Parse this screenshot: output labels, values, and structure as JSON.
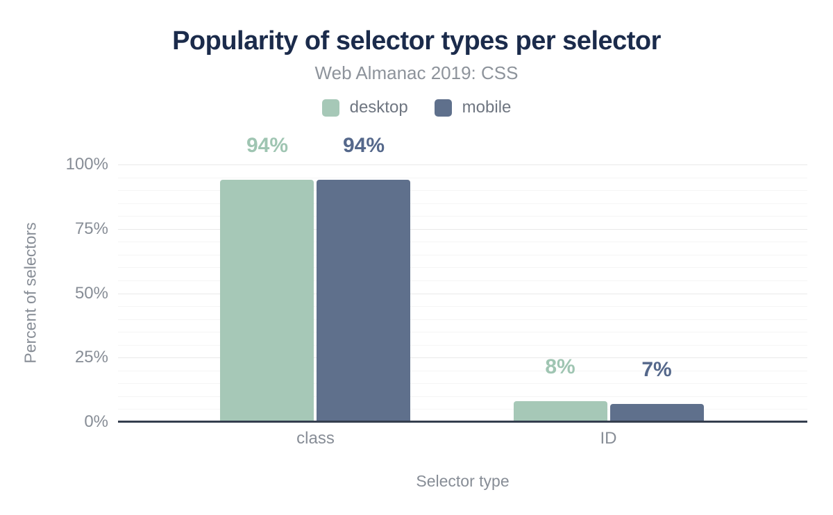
{
  "chart_data": {
    "type": "bar",
    "title": "Popularity of selector types per selector",
    "subtitle": "Web Almanac 2019: CSS",
    "xlabel": "Selector type",
    "ylabel": "Percent of selectors",
    "categories": [
      "class",
      "ID"
    ],
    "series": [
      {
        "name": "desktop",
        "color": "#a6c8b7",
        "label_color": "#9fc5b2",
        "values": [
          94,
          8
        ],
        "data_labels": [
          "94%",
          "8%"
        ]
      },
      {
        "name": "mobile",
        "color": "#5f708c",
        "label_color": "#55688b",
        "values": [
          94,
          7
        ],
        "data_labels": [
          "94%",
          "7%"
        ]
      }
    ],
    "ylim": [
      0,
      100
    ],
    "yticks": [
      {
        "value": 0,
        "label": "0%"
      },
      {
        "value": 25,
        "label": "25%"
      },
      {
        "value": 50,
        "label": "50%"
      },
      {
        "value": 75,
        "label": "75%"
      },
      {
        "value": 100,
        "label": "100%"
      }
    ],
    "grid": {
      "show": true,
      "minor_step": 5,
      "major_step": 25
    },
    "legend_position": "top"
  },
  "colors": {
    "title": "#1b2b4b",
    "subtitle": "#8d939b",
    "axis_text": "#878d96",
    "legend_text": "#6f7681",
    "axis_line": "#343e4e",
    "grid_major": "#e9e9e9",
    "grid_minor": "#f5f5f5",
    "background": "#ffffff"
  }
}
